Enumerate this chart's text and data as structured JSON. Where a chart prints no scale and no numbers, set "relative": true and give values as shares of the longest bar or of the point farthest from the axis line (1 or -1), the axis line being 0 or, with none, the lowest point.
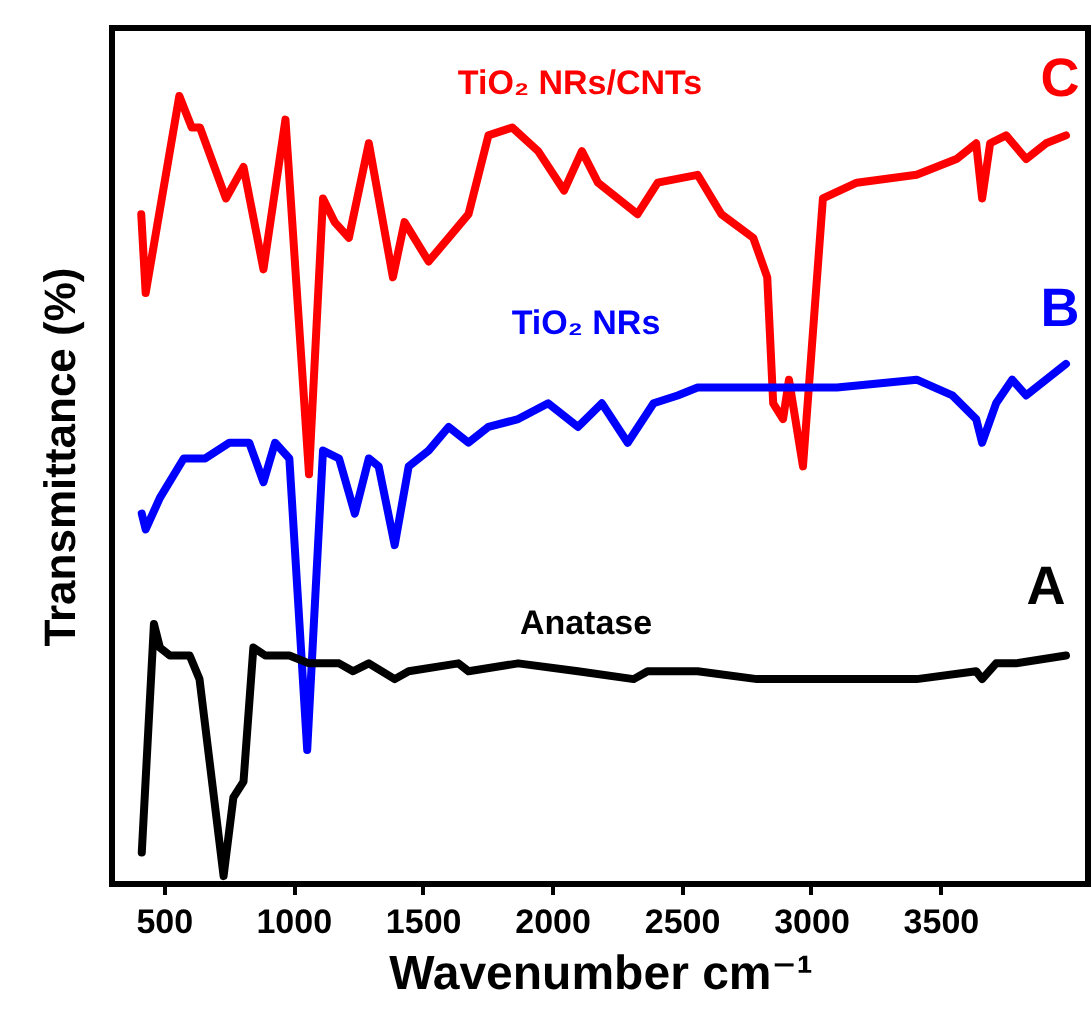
{
  "chart_data": {
    "type": "line",
    "relative": true,
    "xlabel": "Wavenumber cm⁻¹",
    "ylabel": "Transmittance (%)",
    "xlim": [
      300,
      4070
    ],
    "xticks": [
      500,
      1000,
      1500,
      2000,
      2500,
      3000,
      3500
    ],
    "grid": false,
    "marker": "none",
    "line_style": "solid",
    "series": [
      {
        "name": "TiO₂ NRs/CNTs",
        "color": "#ff0000",
        "x": [
          413,
          430,
          560,
          608,
          640,
          740,
          808,
          885,
          970,
          1061,
          1115,
          1160,
          1215,
          1292,
          1385,
          1430,
          1523,
          1600,
          1677,
          1754,
          1846,
          1946,
          2046,
          2115,
          2177,
          2330,
          2408,
          2562,
          2654,
          2777,
          2831,
          2854,
          2892,
          2915,
          2969,
          3046,
          3177,
          3408,
          3562,
          3638,
          3661,
          3692,
          3754,
          3831,
          3908,
          3985
        ],
        "values": [
          0.85,
          0.75,
          1.0,
          0.96,
          0.96,
          0.87,
          0.91,
          0.78,
          0.97,
          0.52,
          0.87,
          0.84,
          0.82,
          0.94,
          0.77,
          0.84,
          0.79,
          0.82,
          0.85,
          0.95,
          0.96,
          0.93,
          0.88,
          0.93,
          0.89,
          0.85,
          0.89,
          0.9,
          0.85,
          0.82,
          0.77,
          0.61,
          0.59,
          0.64,
          0.53,
          0.87,
          0.89,
          0.9,
          0.92,
          0.94,
          0.87,
          0.94,
          0.95,
          0.92,
          0.94,
          0.95
        ]
      },
      {
        "name": "TiO₂ NRs",
        "color": "#0000ff",
        "x": [
          415,
          430,
          485,
          577,
          660,
          754,
          830,
          885,
          930,
          985,
          1054,
          1115,
          1177,
          1238,
          1292,
          1330,
          1392,
          1446,
          1523,
          1600,
          1677,
          1754,
          1869,
          1985,
          2100,
          2192,
          2292,
          2392,
          2485,
          2562,
          2869,
          3100,
          3408,
          3546,
          3638,
          3661,
          3715,
          3777,
          3831,
          3908,
          3985
        ],
        "values": [
          0.47,
          0.45,
          0.49,
          0.54,
          0.54,
          0.56,
          0.56,
          0.51,
          0.56,
          0.54,
          0.17,
          0.55,
          0.54,
          0.47,
          0.54,
          0.53,
          0.43,
          0.53,
          0.55,
          0.58,
          0.56,
          0.58,
          0.59,
          0.61,
          0.58,
          0.61,
          0.56,
          0.61,
          0.62,
          0.63,
          0.63,
          0.63,
          0.64,
          0.62,
          0.59,
          0.56,
          0.61,
          0.64,
          0.62,
          0.64,
          0.66
        ]
      },
      {
        "name": "Anatase",
        "color": "#000000",
        "x": [
          415,
          462,
          485,
          523,
          600,
          638,
          731,
          769,
          808,
          846,
          892,
          985,
          1061,
          1177,
          1231,
          1292,
          1392,
          1446,
          1638,
          1677,
          1869,
          2100,
          2315,
          2369,
          2562,
          2792,
          3100,
          3408,
          3638,
          3661,
          3715,
          3792,
          3985
        ],
        "values": [
          0.04,
          0.33,
          0.3,
          0.29,
          0.29,
          0.26,
          0.01,
          0.11,
          0.13,
          0.3,
          0.29,
          0.29,
          0.28,
          0.28,
          0.27,
          0.28,
          0.26,
          0.27,
          0.28,
          0.27,
          0.28,
          0.27,
          0.26,
          0.27,
          0.27,
          0.26,
          0.26,
          0.26,
          0.27,
          0.26,
          0.28,
          0.28,
          0.29
        ]
      }
    ],
    "annotations": [
      "C",
      "B",
      "A"
    ]
  }
}
